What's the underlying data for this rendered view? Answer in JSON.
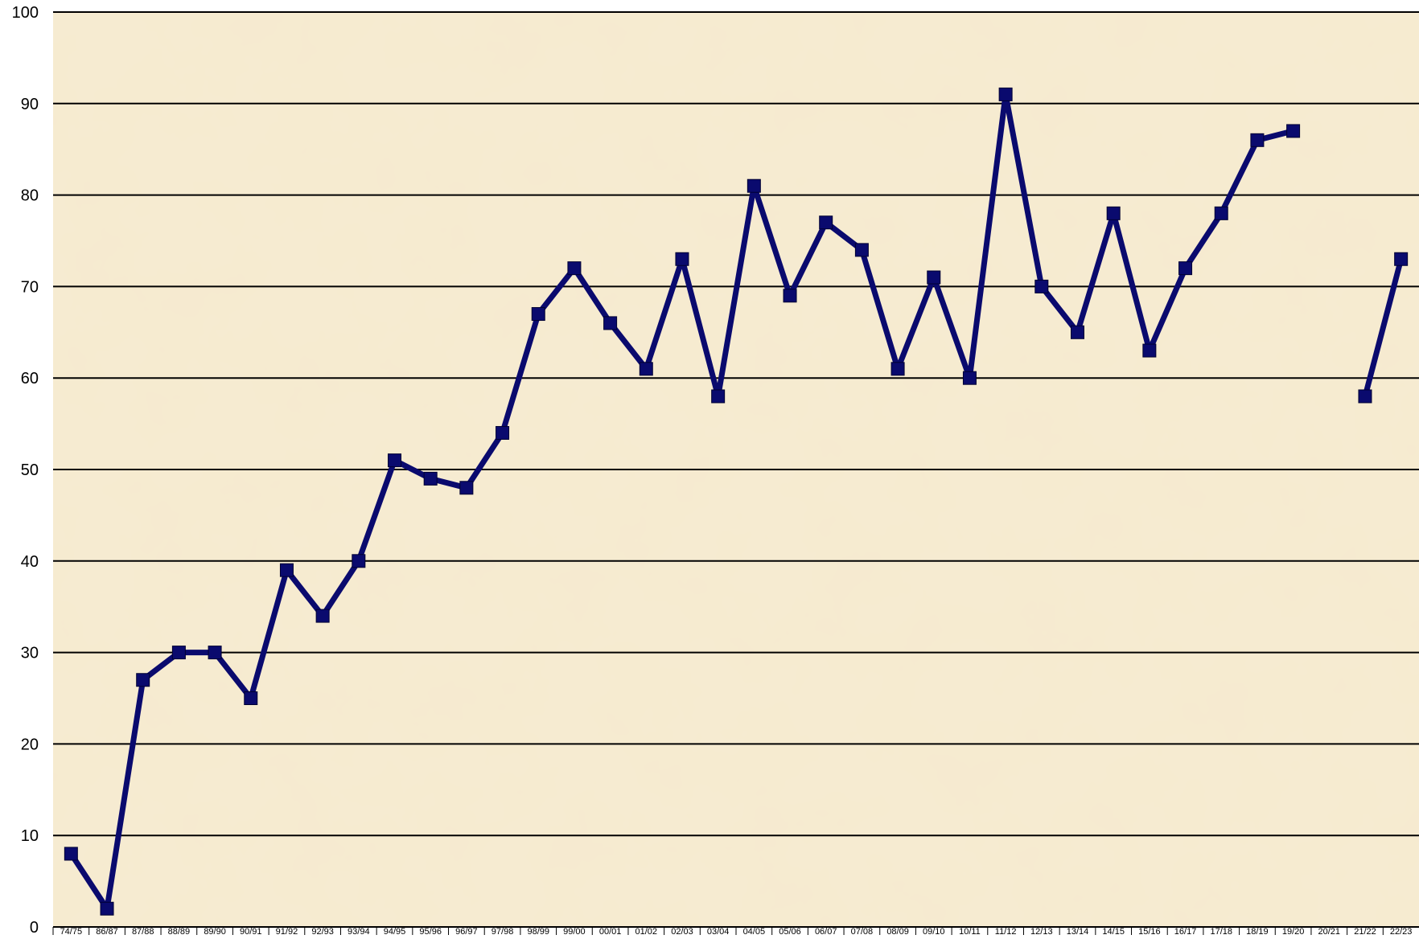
{
  "chart_data": {
    "type": "line",
    "title": "",
    "xlabel": "",
    "ylabel": "",
    "ylim": [
      0,
      100
    ],
    "yticks": [
      0,
      10,
      20,
      30,
      40,
      50,
      60,
      70,
      80,
      90,
      100
    ],
    "grid": "horizontal",
    "categories": [
      "74/75",
      "86/87",
      "87/88",
      "88/89",
      "89/90",
      "90/91",
      "91/92",
      "92/93",
      "93/94",
      "94/95",
      "95/96",
      "96/97",
      "97/98",
      "98/99",
      "99/00",
      "00/01",
      "01/02",
      "02/03",
      "03/04",
      "04/05",
      "05/06",
      "06/07",
      "07/08",
      "08/09",
      "09/10",
      "10/11",
      "11/12",
      "12/13",
      "13/14",
      "14/15",
      "15/16",
      "16/17",
      "17/18",
      "18/19",
      "19/20",
      "20/21",
      "21/22",
      "22/23"
    ],
    "series": [
      {
        "values": [
          8,
          2,
          27,
          30,
          30,
          25,
          39,
          34,
          40,
          51,
          49,
          48,
          54,
          67,
          72,
          66,
          61,
          73,
          58,
          81,
          69,
          77,
          74,
          61,
          71,
          60,
          91,
          70,
          65,
          78,
          63,
          72,
          78,
          86,
          87,
          null,
          58,
          73
        ]
      }
    ],
    "colors": {
      "line": "#0a0a6e",
      "marker": "#0a0a6e",
      "grid": "#000000",
      "background": "#ecd9ae",
      "background_light": "#f6ead0"
    }
  }
}
